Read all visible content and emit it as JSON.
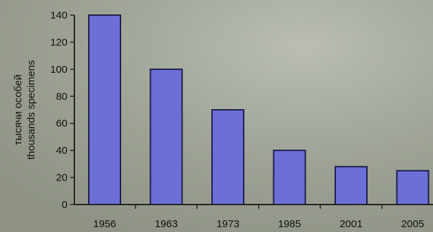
{
  "chart_data": {
    "type": "bar",
    "categories": [
      "1956",
      "1963",
      "1973",
      "1985",
      "2001",
      "2005"
    ],
    "values": [
      140,
      100,
      70,
      40,
      28,
      25
    ],
    "ylabel_lines": [
      "тысячи особей",
      "thousands specimens"
    ],
    "yticks": [
      0,
      20,
      40,
      60,
      80,
      100,
      120,
      140
    ],
    "ylim": [
      0,
      140
    ],
    "grid": false,
    "colors": {
      "bar_fill": "#6b6fd6",
      "bar_stroke": "#1e1e4a",
      "axis": "#222222",
      "background": "#9aa094"
    }
  }
}
